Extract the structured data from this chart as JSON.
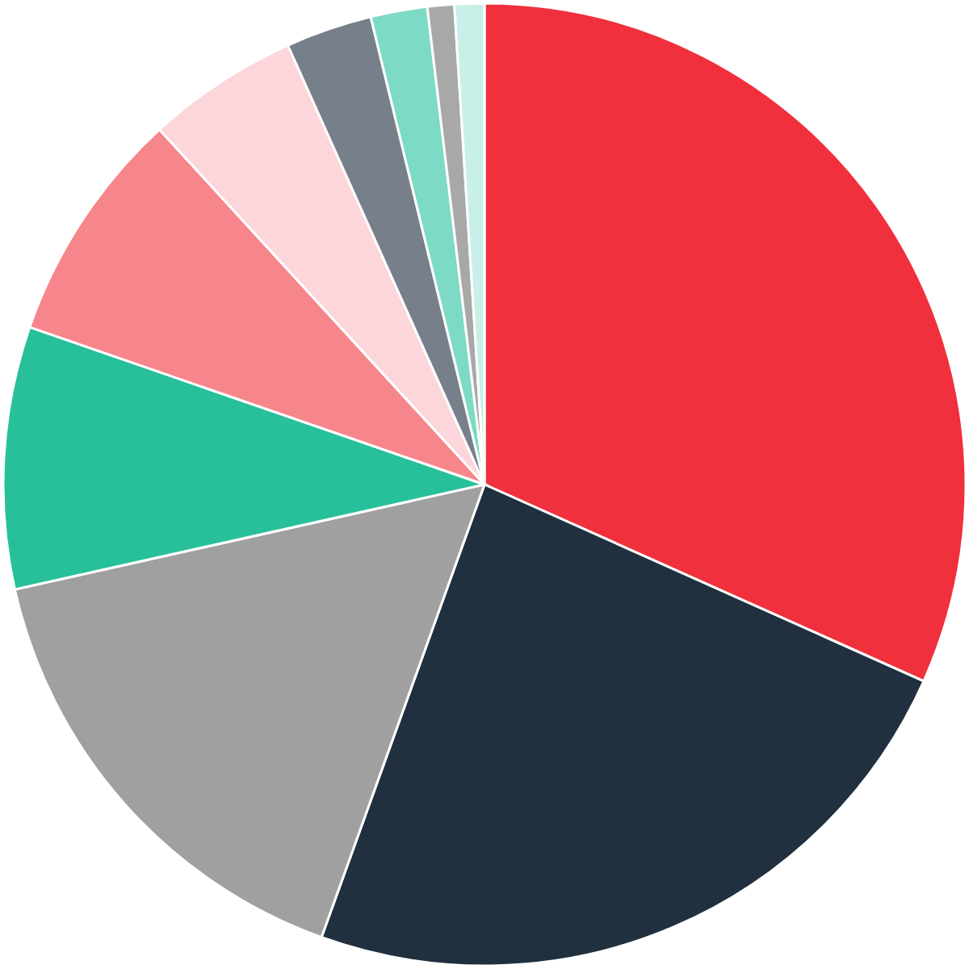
{
  "chart_data": {
    "type": "pie",
    "categories": [
      null,
      null,
      null,
      null,
      null,
      null,
      null,
      null,
      null,
      null
    ],
    "values": [
      31.7,
      23.8,
      16,
      8.8,
      7.9,
      5.1,
      2.9,
      1.9,
      0.9,
      1.0
    ],
    "colors": [
      "#f0303c",
      "#20303f",
      "#a0a0a0",
      "#28c09a",
      "#f6868c",
      "#fcd6da",
      "#77808a",
      "#7ddac4",
      "#a8a8a8",
      "#c8f0e8"
    ]
  }
}
